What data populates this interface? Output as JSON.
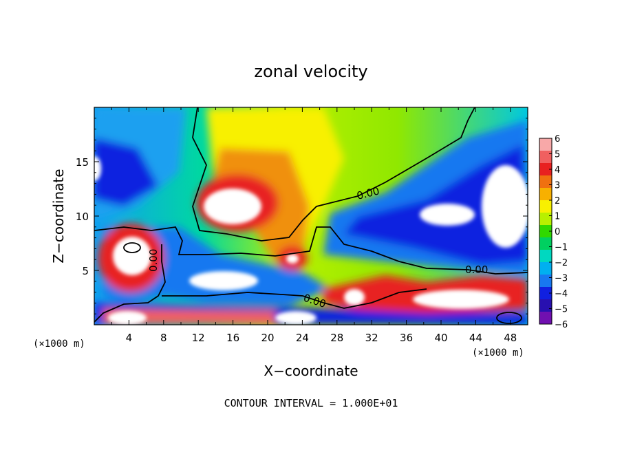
{
  "chart_data": {
    "type": "heatmap",
    "title": "zonal velocity",
    "xlabel": "X−coordinate",
    "ylabel": "Z−coordinate",
    "x_unit_left": "(×1000 m)",
    "x_unit_right": "(×1000 m)",
    "x_ticks": [
      "4",
      "8",
      "12",
      "16",
      "20",
      "24",
      "28",
      "32",
      "36",
      "40",
      "44",
      "48"
    ],
    "y_ticks": [
      "5",
      "10",
      "15"
    ],
    "xlim": [
      0,
      50
    ],
    "ylim": [
      0,
      20
    ],
    "colorbar": {
      "ticks": [
        "6",
        "5",
        "4",
        "3",
        "2",
        "1",
        "0",
        "−1",
        "−2",
        "−3",
        "−4",
        "−5",
        "−6"
      ],
      "range": [
        -6,
        6
      ],
      "colors": [
        "#f8a8a8",
        "#f06060",
        "#e82020",
        "#f07010",
        "#f8b000",
        "#f8f000",
        "#b8f000",
        "#30d800",
        "#00d060",
        "#00d8c0",
        "#00b0f0",
        "#1878f0",
        "#1020e0",
        "#2810b0",
        "#7010b0"
      ]
    },
    "contour_labels": [
      "0.00",
      "0.00",
      "0.00",
      "0.00"
    ],
    "footer": "CONTOUR INTERVAL = 1.000E+01"
  }
}
